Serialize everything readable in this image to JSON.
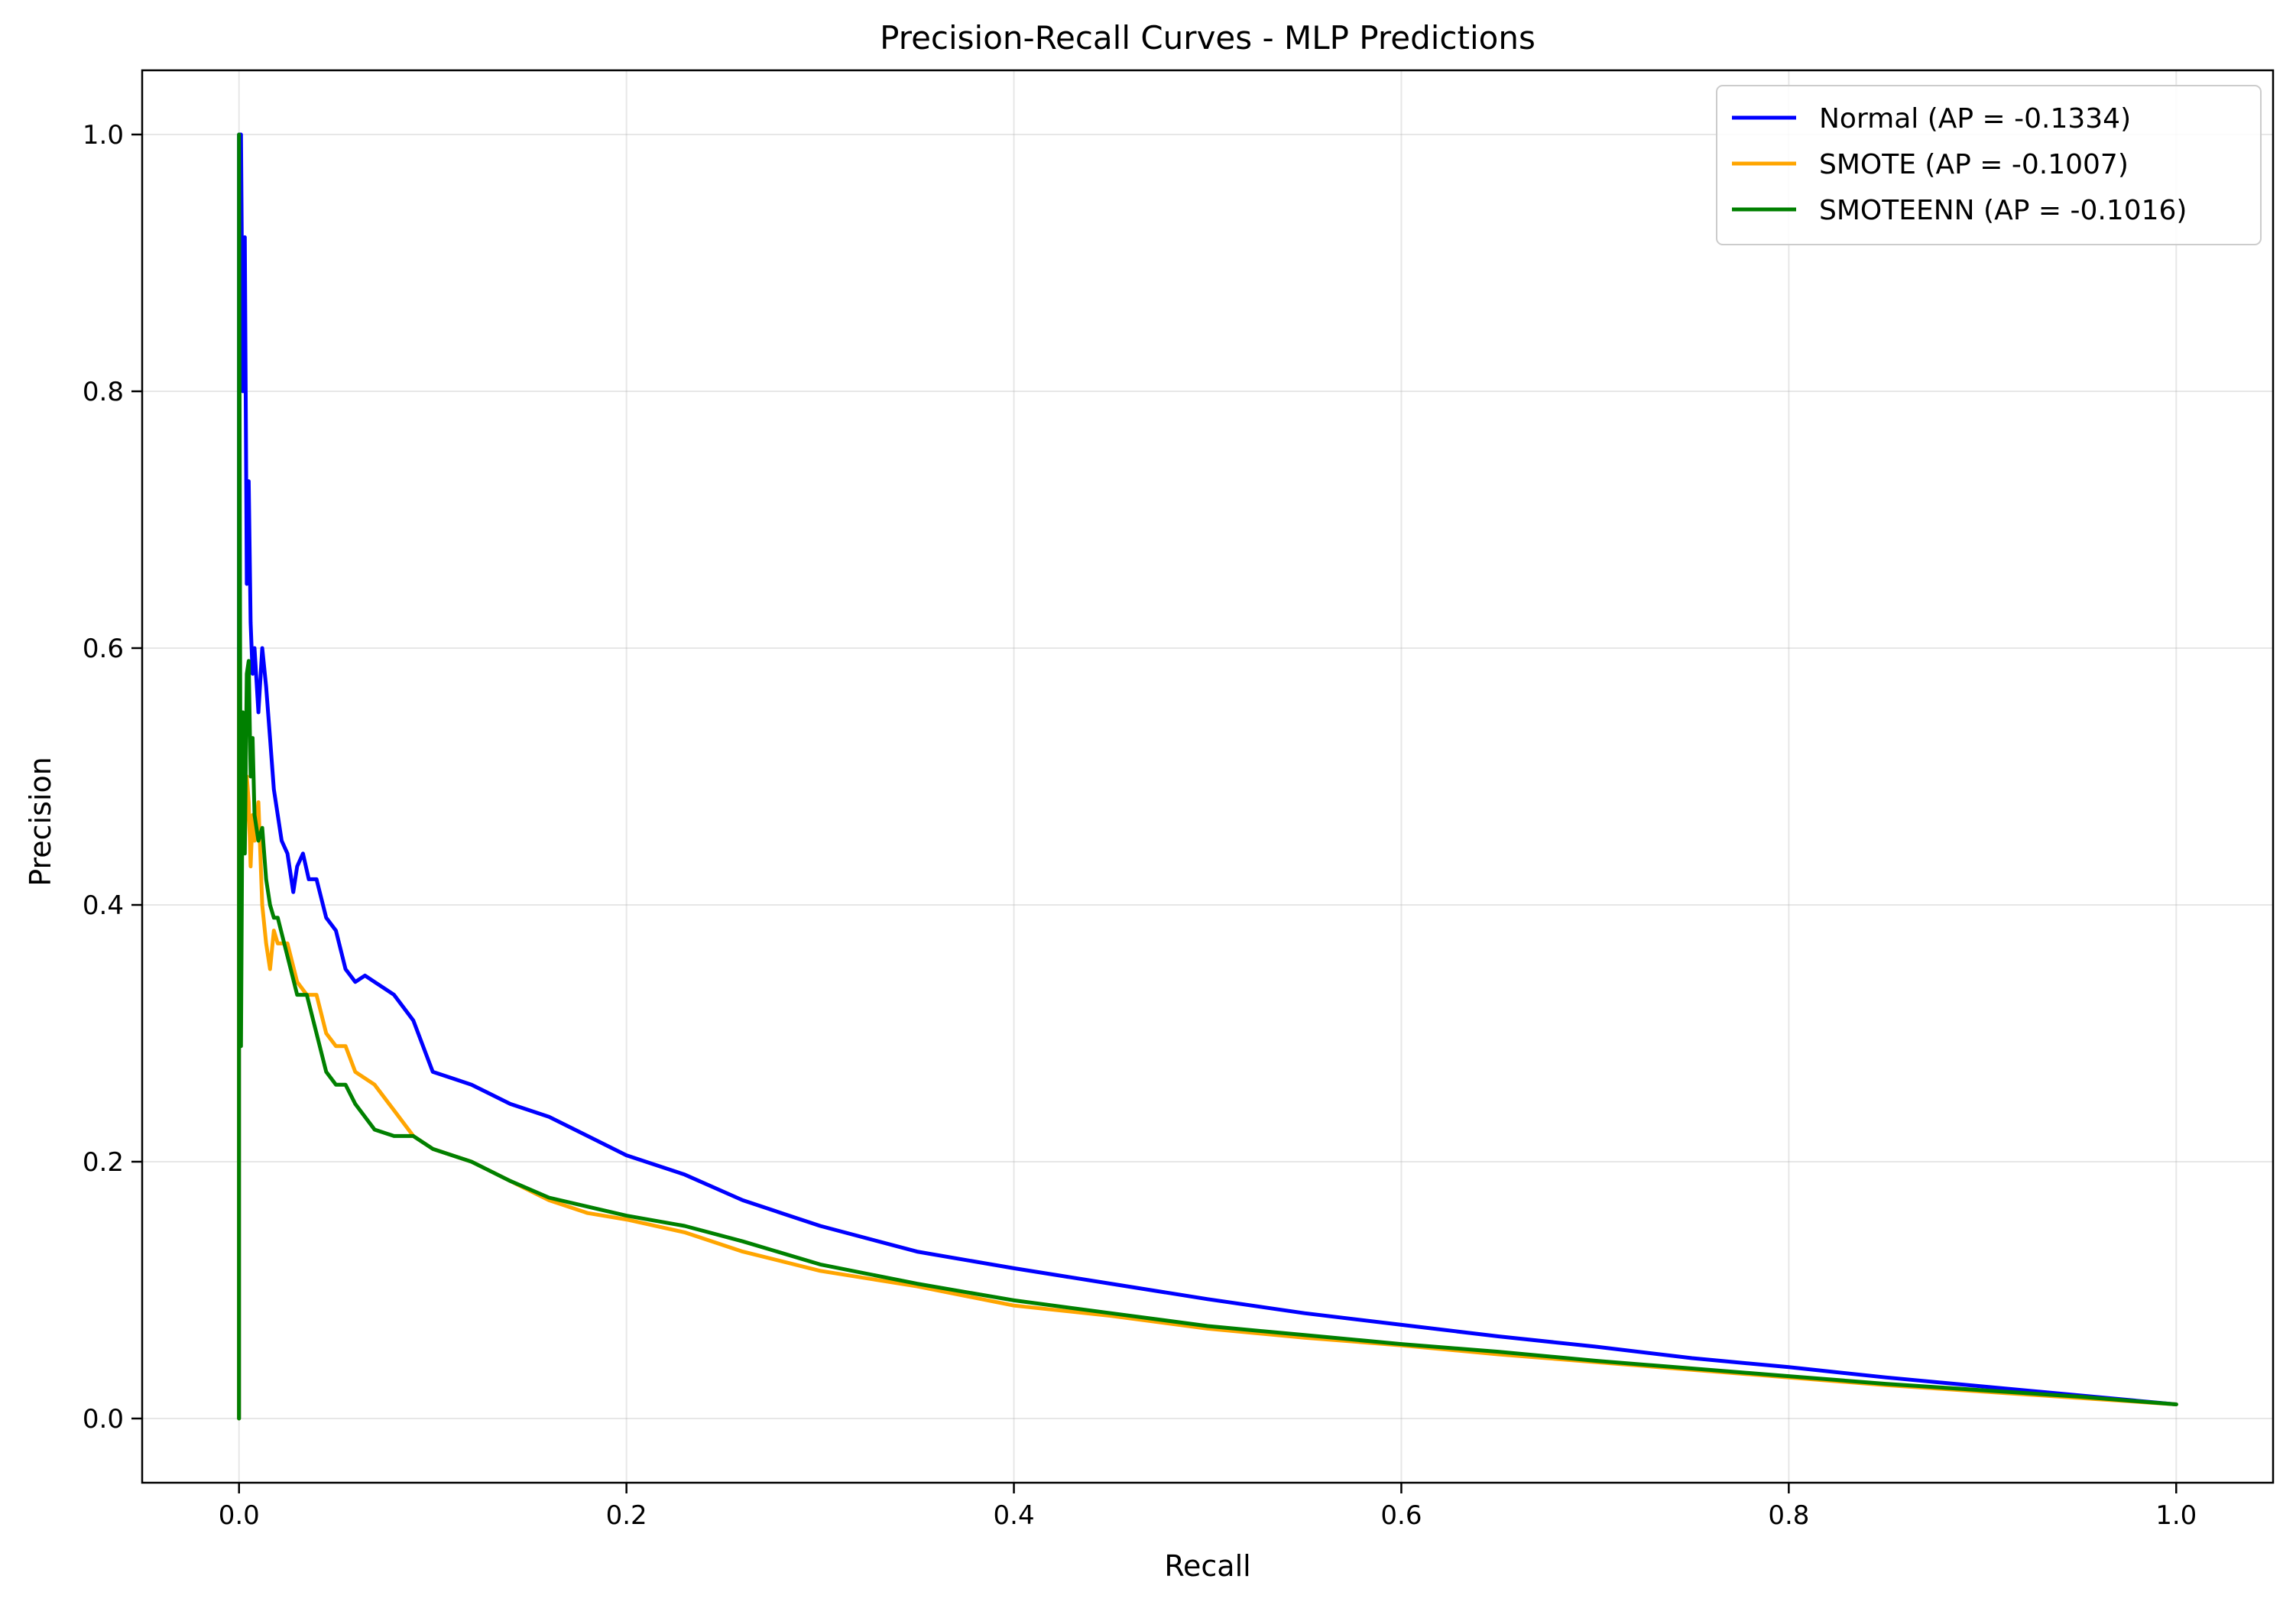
{
  "chart_data": {
    "type": "line",
    "title": "Precision-Recall Curves - MLP Predictions",
    "xlabel": "Recall",
    "ylabel": "Precision",
    "xlim": [
      -0.05,
      1.05
    ],
    "ylim": [
      -0.05,
      1.05
    ],
    "xticks": [
      0.0,
      0.2,
      0.4,
      0.6,
      0.8,
      1.0
    ],
    "xtick_labels": [
      "0.0",
      "0.2",
      "0.4",
      "0.6",
      "0.8",
      "1.0"
    ],
    "yticks": [
      0.0,
      0.2,
      0.4,
      0.6,
      0.8,
      1.0
    ],
    "ytick_labels": [
      "0.0",
      "0.2",
      "0.4",
      "0.6",
      "0.8",
      "1.0"
    ],
    "grid": true,
    "legend_position": "top-right",
    "series": [
      {
        "name": "Normal (AP = -0.1334)",
        "color": "#0000ff",
        "x": [
          0.0,
          0.0,
          0.001,
          0.002,
          0.003,
          0.004,
          0.005,
          0.006,
          0.007,
          0.008,
          0.01,
          0.012,
          0.014,
          0.016,
          0.018,
          0.02,
          0.022,
          0.025,
          0.028,
          0.03,
          0.033,
          0.036,
          0.04,
          0.045,
          0.05,
          0.055,
          0.06,
          0.065,
          0.07,
          0.08,
          0.09,
          0.1,
          0.11,
          0.12,
          0.14,
          0.16,
          0.18,
          0.2,
          0.23,
          0.26,
          0.3,
          0.35,
          0.4,
          0.45,
          0.5,
          0.55,
          0.6,
          0.65,
          0.7,
          0.75,
          0.8,
          0.85,
          0.9,
          0.95,
          1.0
        ],
        "y": [
          0.0,
          1.0,
          1.0,
          0.8,
          0.92,
          0.65,
          0.73,
          0.62,
          0.58,
          0.6,
          0.55,
          0.6,
          0.57,
          0.53,
          0.49,
          0.47,
          0.45,
          0.44,
          0.41,
          0.43,
          0.44,
          0.42,
          0.42,
          0.39,
          0.38,
          0.35,
          0.34,
          0.345,
          0.34,
          0.33,
          0.31,
          0.27,
          0.265,
          0.26,
          0.245,
          0.235,
          0.22,
          0.205,
          0.19,
          0.17,
          0.15,
          0.13,
          0.117,
          0.105,
          0.093,
          0.082,
          0.073,
          0.064,
          0.056,
          0.047,
          0.04,
          0.032,
          0.025,
          0.018,
          0.011
        ]
      },
      {
        "name": "SMOTE (AP = -0.1007)",
        "color": "#ffa500",
        "x": [
          0.0,
          0.0,
          0.001,
          0.002,
          0.003,
          0.004,
          0.005,
          0.006,
          0.007,
          0.008,
          0.01,
          0.012,
          0.014,
          0.016,
          0.018,
          0.02,
          0.025,
          0.03,
          0.035,
          0.04,
          0.045,
          0.05,
          0.055,
          0.06,
          0.07,
          0.08,
          0.09,
          0.1,
          0.11,
          0.12,
          0.14,
          0.16,
          0.18,
          0.2,
          0.23,
          0.26,
          0.3,
          0.35,
          0.4,
          0.45,
          0.5,
          0.55,
          0.6,
          0.65,
          0.7,
          0.75,
          0.8,
          0.85,
          0.9,
          0.95,
          1.0
        ],
        "y": [
          0.0,
          0.59,
          0.42,
          0.5,
          0.45,
          0.5,
          0.48,
          0.43,
          0.47,
          0.45,
          0.48,
          0.4,
          0.37,
          0.35,
          0.38,
          0.37,
          0.37,
          0.34,
          0.33,
          0.33,
          0.3,
          0.29,
          0.29,
          0.27,
          0.26,
          0.24,
          0.22,
          0.21,
          0.205,
          0.2,
          0.185,
          0.17,
          0.16,
          0.155,
          0.145,
          0.13,
          0.115,
          0.103,
          0.088,
          0.08,
          0.07,
          0.063,
          0.057,
          0.05,
          0.044,
          0.038,
          0.032,
          0.026,
          0.021,
          0.016,
          0.011
        ]
      },
      {
        "name": "SMOTEENN (AP = -0.1016)",
        "color": "#008000",
        "x": [
          0.0,
          0.0,
          0.001,
          0.002,
          0.003,
          0.004,
          0.005,
          0.006,
          0.007,
          0.008,
          0.01,
          0.012,
          0.014,
          0.016,
          0.018,
          0.02,
          0.025,
          0.03,
          0.035,
          0.04,
          0.045,
          0.05,
          0.055,
          0.06,
          0.07,
          0.08,
          0.09,
          0.1,
          0.11,
          0.12,
          0.14,
          0.16,
          0.18,
          0.2,
          0.23,
          0.26,
          0.3,
          0.35,
          0.4,
          0.45,
          0.5,
          0.55,
          0.6,
          0.65,
          0.7,
          0.75,
          0.8,
          0.85,
          0.9,
          0.95,
          1.0
        ],
        "y": [
          0.0,
          1.0,
          0.29,
          0.55,
          0.44,
          0.58,
          0.59,
          0.5,
          0.53,
          0.47,
          0.45,
          0.46,
          0.42,
          0.4,
          0.39,
          0.39,
          0.36,
          0.33,
          0.33,
          0.3,
          0.27,
          0.26,
          0.26,
          0.245,
          0.225,
          0.22,
          0.22,
          0.21,
          0.205,
          0.2,
          0.185,
          0.172,
          0.165,
          0.158,
          0.15,
          0.138,
          0.12,
          0.105,
          0.092,
          0.082,
          0.072,
          0.065,
          0.058,
          0.052,
          0.045,
          0.039,
          0.033,
          0.027,
          0.022,
          0.017,
          0.011
        ]
      }
    ]
  }
}
